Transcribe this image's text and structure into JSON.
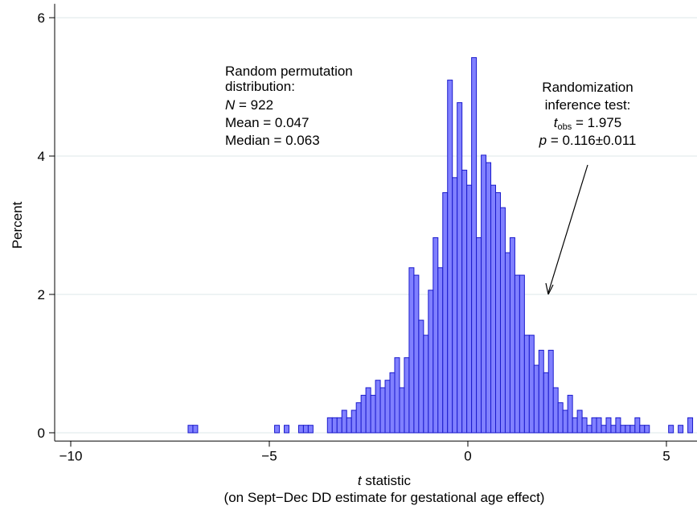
{
  "chart_data": {
    "type": "histogram",
    "xlabel_italic": "t",
    "xlabel": " statistic",
    "xlabel_sub": "(on Sept−Dec DD estimate for gestational age effect)",
    "ylabel": "Percent",
    "bins": [
      -7.045,
      -6.924,
      -6.803,
      -6.682,
      -6.561,
      -6.44,
      -6.319,
      -6.198,
      -6.077,
      -5.956,
      -5.835,
      -5.714,
      -5.593,
      -5.472,
      -5.351,
      -5.23,
      -5.109,
      -4.988,
      -4.867,
      -4.746,
      -4.625,
      -4.504,
      -4.383,
      -4.262,
      -4.141,
      -4.02,
      -3.899,
      -3.778,
      -3.657,
      -3.536,
      -3.415,
      -3.294,
      -3.173,
      -3.052,
      -2.931,
      -2.81,
      -2.689,
      -2.568,
      -2.447,
      -2.326,
      -2.205,
      -2.084,
      -1.963,
      -1.842,
      -1.721,
      -1.6,
      -1.479,
      -1.358,
      -1.237,
      -1.116,
      -0.995,
      -0.874,
      -0.753,
      -0.632,
      -0.511,
      -0.39,
      -0.269,
      -0.148,
      -0.027,
      0.094,
      0.215,
      0.336,
      0.457,
      0.578,
      0.699,
      0.82,
      0.941,
      1.062,
      1.183,
      1.304,
      1.425,
      1.546,
      1.667,
      1.788,
      1.909,
      2.03,
      2.151,
      2.272,
      2.393,
      2.514,
      2.635,
      2.756,
      2.877,
      2.998,
      3.119,
      3.24,
      3.361,
      3.482,
      3.603,
      3.724,
      3.845,
      3.966,
      4.087,
      4.208,
      4.329,
      4.45,
      4.571,
      4.692,
      4.813,
      4.934,
      5.055,
      5.176,
      5.297,
      5.418,
      5.539,
      5.66
    ],
    "values": [
      0.108,
      0.108,
      0,
      0,
      0,
      0,
      0,
      0,
      0,
      0,
      0,
      0,
      0,
      0,
      0,
      0,
      0,
      0,
      0.108,
      0,
      0.108,
      0,
      0,
      0.108,
      0.108,
      0.108,
      0,
      0,
      0,
      0.217,
      0.217,
      0.217,
      0.325,
      0.217,
      0.325,
      0.434,
      0.542,
      0.651,
      0.542,
      0.759,
      0.651,
      0.759,
      0.868,
      1.085,
      0.651,
      1.085,
      2.386,
      2.278,
      1.627,
      1.41,
      2.061,
      2.82,
      2.386,
      3.471,
      5.098,
      3.688,
      4.772,
      3.796,
      3.579,
      5.423,
      2.82,
      4.013,
      3.905,
      3.579,
      3.471,
      3.254,
      2.603,
      2.82,
      2.278,
      2.278,
      1.41,
      1.41,
      0.976,
      1.193,
      0.868,
      1.193,
      0.651,
      0.434,
      0.325,
      0.542,
      0.217,
      0.325,
      0.217,
      0.108,
      0.217,
      0.217,
      0.108,
      0.217,
      0.108,
      0.217,
      0.108,
      0.108,
      0.108,
      0.217,
      0.108,
      0.108,
      0,
      0,
      0,
      0,
      0.108,
      0,
      0.108,
      0,
      0.217
    ],
    "color": "#8080ff",
    "edgecolor": "#1a1acc",
    "xlim": [
      -10.405,
      5.77
    ],
    "ylim": [
      -0.12,
      6.2
    ],
    "xticks": [
      {
        "value": -10,
        "label": "−10"
      },
      {
        "value": -5,
        "label": "−5"
      },
      0,
      5
    ],
    "yticks": [
      0,
      2,
      4,
      6
    ],
    "grid": true,
    "annotations": {
      "left": {
        "line1": "Random permutation",
        "line2": "distribution:",
        "n_sym": "N",
        "n_text": " = 922",
        "mean": "Mean = 0.047",
        "median": "Median = 0.063"
      },
      "right": {
        "line1": "Randomization",
        "line2": "inference test:",
        "t_sym": "t",
        "t_sub": "obs",
        "t_text": " = 1.975",
        "p_sym": "p",
        "p_text": " = 0.116±0.011"
      }
    }
  }
}
